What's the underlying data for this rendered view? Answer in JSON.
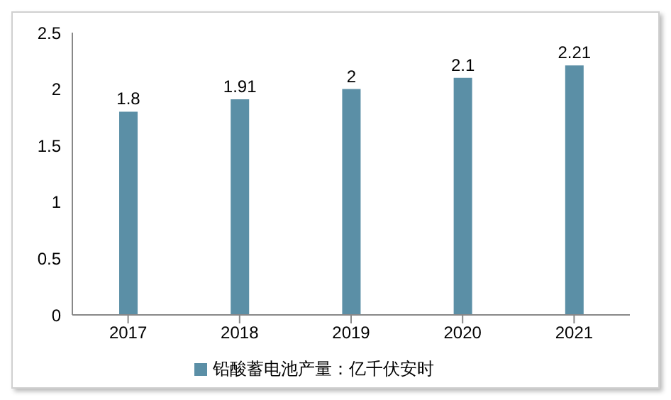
{
  "chart_data": {
    "type": "bar",
    "categories": [
      "2017",
      "2018",
      "2019",
      "2020",
      "2021"
    ],
    "series": [
      {
        "name": "铅酸蓄电池产量：亿千伏安时",
        "color": "#5b8fa6",
        "values": [
          1.8,
          1.91,
          2,
          2.1,
          2.21
        ]
      }
    ],
    "ylim": [
      0,
      2.5
    ],
    "yticks": [
      0,
      0.5,
      1,
      1.5,
      2,
      2.5
    ],
    "grid": false,
    "legend": "bottom",
    "data_labels": true
  }
}
